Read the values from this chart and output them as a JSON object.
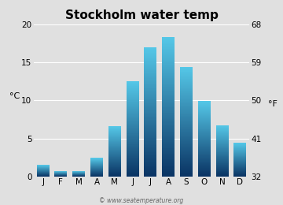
{
  "title": "Stockholm water temp",
  "months": [
    "J",
    "F",
    "M",
    "A",
    "M",
    "J",
    "J",
    "A",
    "S",
    "O",
    "N",
    "D"
  ],
  "values_c": [
    1.5,
    0.7,
    0.7,
    2.4,
    6.6,
    12.5,
    17.0,
    18.3,
    14.4,
    9.9,
    6.7,
    4.4
  ],
  "ylim_c": [
    0,
    20
  ],
  "yticks_c": [
    0,
    5,
    10,
    15,
    20
  ],
  "yticks_f": [
    32,
    41,
    50,
    59,
    68
  ],
  "ylabel_left": "°C",
  "ylabel_right": "°F",
  "bg_color": "#e0e0e0",
  "bar_color_top": "#55c8e8",
  "bar_color_bottom": "#0a3464",
  "watermark": "© www.seatemperature.org",
  "title_fontsize": 11,
  "tick_fontsize": 7.5,
  "label_fontsize": 8
}
